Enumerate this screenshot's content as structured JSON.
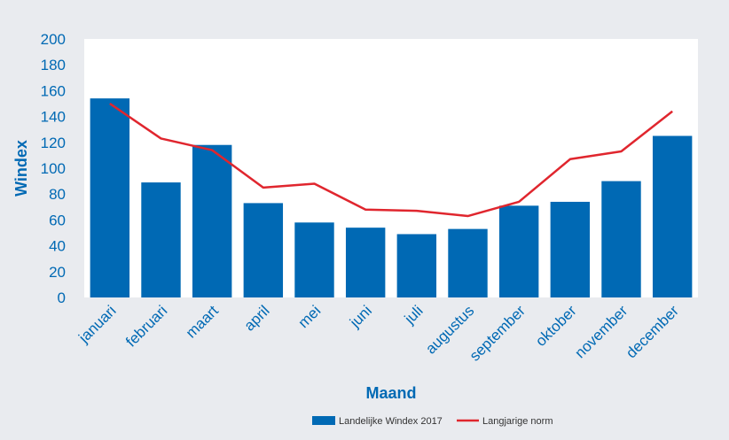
{
  "chart_data": {
    "type": "bar",
    "xlabel": "Maand",
    "ylabel": "Windex",
    "ylim": [
      0,
      200
    ],
    "yticks": [
      0,
      20,
      40,
      60,
      80,
      100,
      120,
      140,
      160,
      180,
      200
    ],
    "grid": false,
    "legend_position": "bottom",
    "categories": [
      "januari",
      "februari",
      "maart",
      "april",
      "mei",
      "juni",
      "juli",
      "augustus",
      "september",
      "oktober",
      "november",
      "december"
    ],
    "series": [
      {
        "name": "Landelijke Windex 2017",
        "type": "bar",
        "color": "#0069b4",
        "values": [
          154,
          89,
          118,
          73,
          58,
          54,
          49,
          53,
          71,
          74,
          90,
          125
        ]
      },
      {
        "name": "Langjarige norm",
        "type": "line",
        "color": "#e0262e",
        "values": [
          150,
          123,
          114,
          85,
          88,
          68,
          67,
          63,
          74,
          107,
          113,
          144
        ]
      }
    ]
  },
  "colors": {
    "background": "#e9ebef",
    "plot_background": "#ffffff",
    "axis_text": "#0069b4"
  }
}
